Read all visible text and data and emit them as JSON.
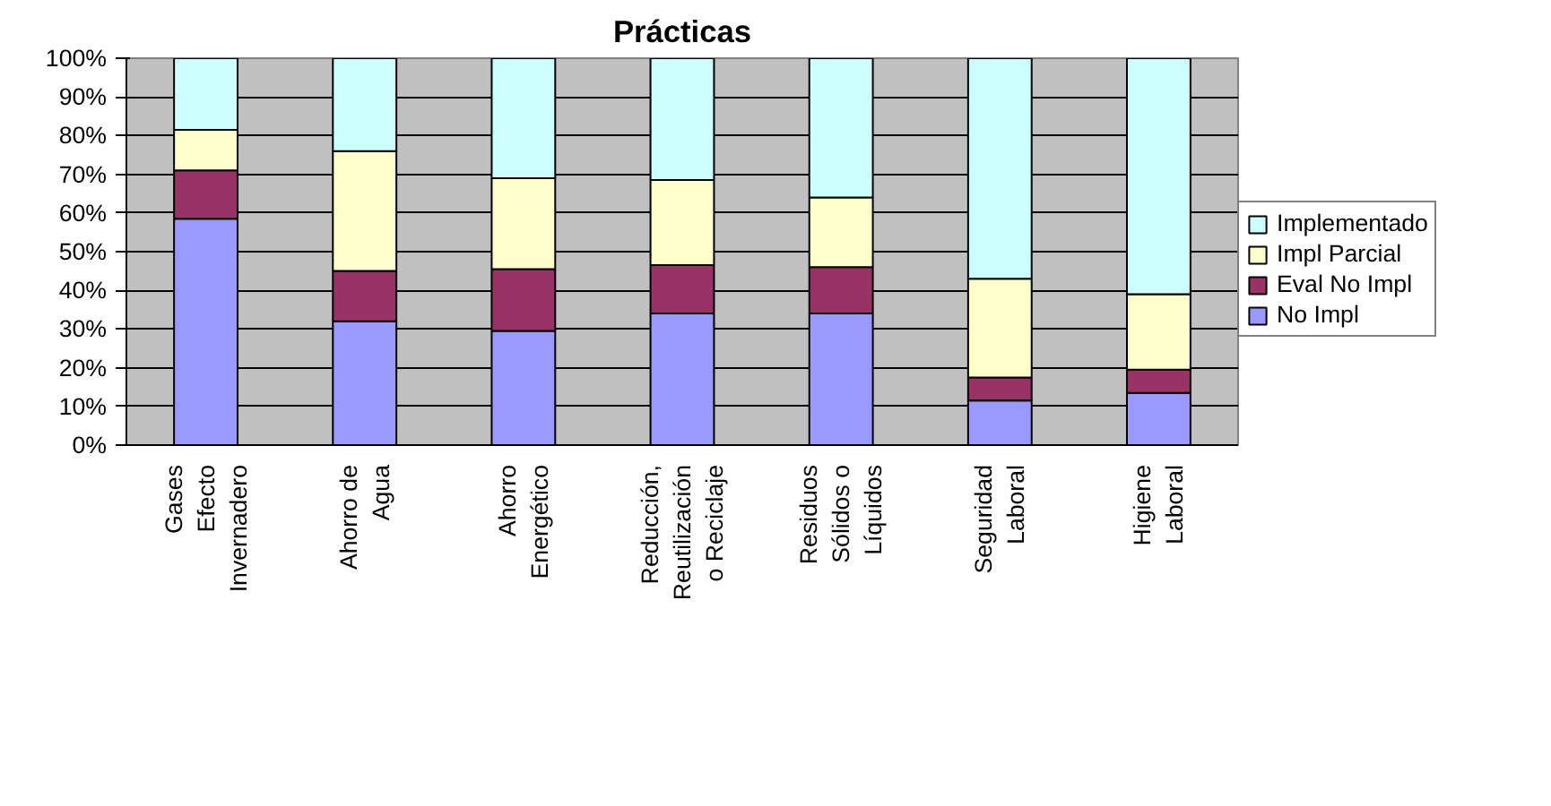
{
  "chart_data": {
    "type": "bar",
    "title": "Prácticas",
    "stacked": true,
    "categories": [
      "Gases\nEfecto\nInvernadero",
      "Ahorro de\nAgua",
      "Ahorro\nEnergético",
      "Reducción,\nReutilización\no Reciclaje",
      "Residuos\nSólidos o\nLíquidos",
      "Seguridad\nLaboral",
      "Higiene\nLaboral"
    ],
    "series": [
      {
        "name": "No Impl",
        "color": "#9999ff",
        "values": [
          58.5,
          32,
          29.5,
          34,
          34,
          11.5,
          13.5
        ]
      },
      {
        "name": "Eval No Impl",
        "color": "#993366",
        "values": [
          12.5,
          13,
          16,
          12.5,
          12,
          6,
          6
        ]
      },
      {
        "name": "Impl Parcial",
        "color": "#ffffcc",
        "values": [
          10.5,
          31,
          23.5,
          22,
          18,
          25.5,
          19.5
        ]
      },
      {
        "name": "Implementado",
        "color": "#ccffff",
        "values": [
          18.5,
          24,
          31,
          31.5,
          36,
          57,
          61
        ]
      }
    ],
    "ylim": [
      0,
      100
    ],
    "yticks": [
      {
        "value": 0,
        "label": "0%"
      },
      {
        "value": 10,
        "label": "10%"
      },
      {
        "value": 20,
        "label": "20%"
      },
      {
        "value": 30,
        "label": "30%"
      },
      {
        "value": 40,
        "label": "40%"
      },
      {
        "value": 50,
        "label": "50%"
      },
      {
        "value": 60,
        "label": "60%"
      },
      {
        "value": 70,
        "label": "70%"
      },
      {
        "value": 80,
        "label": "80%"
      },
      {
        "value": 90,
        "label": "90%"
      },
      {
        "value": 100,
        "label": "100%"
      }
    ],
    "grid": "y",
    "legend": "right"
  }
}
